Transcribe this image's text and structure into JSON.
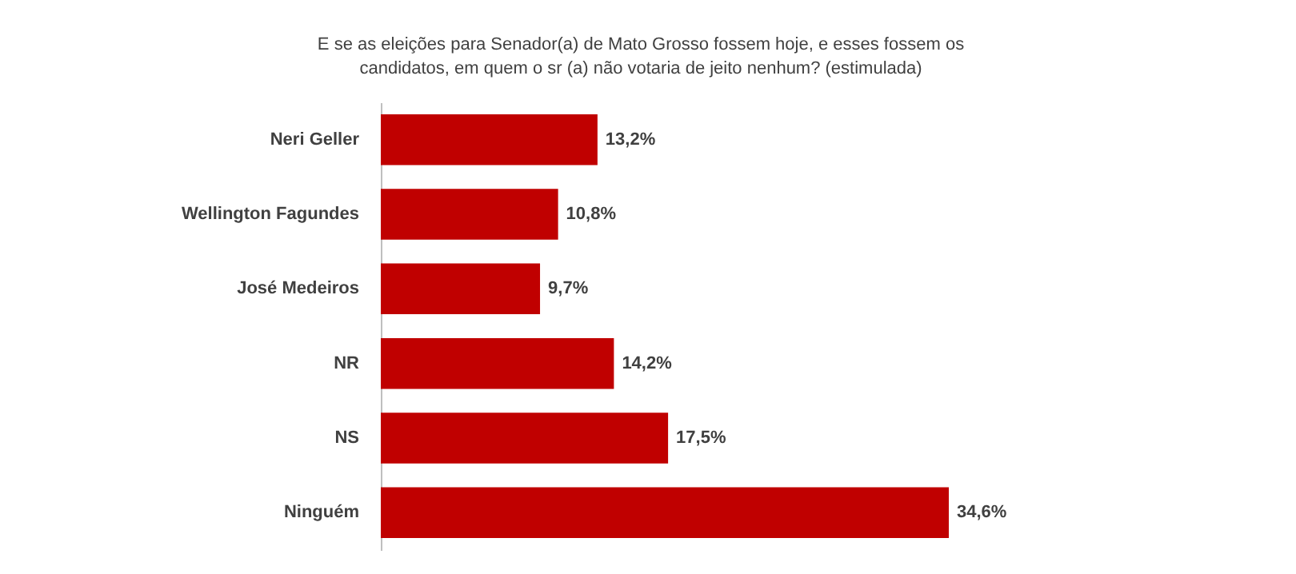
{
  "chart_data": {
    "type": "bar",
    "orientation": "horizontal",
    "title": "E se as eleições para Senador(a) de Mato Grosso fossem hoje, e esses fossem os candidatos, em quem o sr (a) não votaria de jeito nenhum?  (estimulada)",
    "categories": [
      "Neri Geller",
      "Wellington Fagundes",
      "José Medeiros",
      "NR",
      "NS",
      "Ninguém"
    ],
    "values": [
      13.2,
      10.8,
      9.7,
      14.2,
      17.5,
      34.6
    ],
    "value_labels": [
      "13,2%",
      "10,8%",
      "9,7%",
      "14,2%",
      "17,5%",
      "34,6%"
    ],
    "color": "#c00000"
  }
}
